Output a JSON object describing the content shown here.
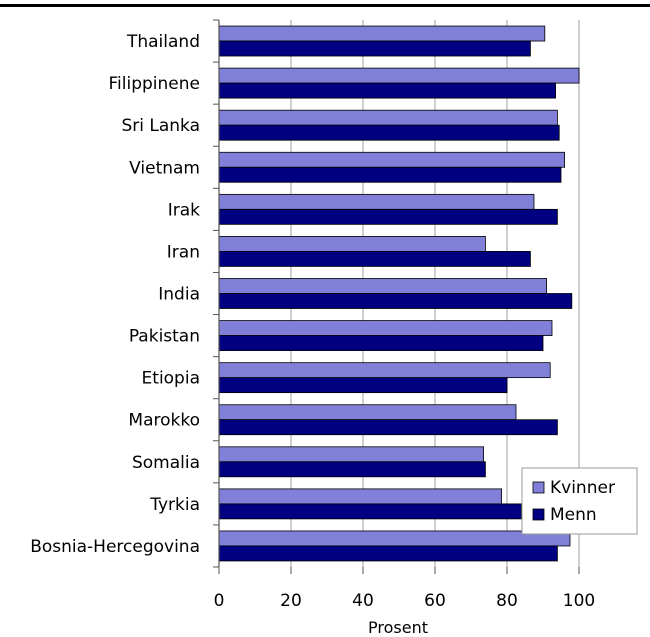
{
  "chart_data": {
    "type": "bar",
    "orientation": "horizontal",
    "categories": [
      "Thailand",
      "Filippinene",
      "Sri Lanka",
      "Vietnam",
      "Irak",
      "Iran",
      "India",
      "Pakistan",
      "Etiopia",
      "Marokko",
      "Somalia",
      "Tyrkia",
      "Bosnia-Hercegovina"
    ],
    "series": [
      {
        "name": "Kvinner",
        "color": "#8080d8",
        "values": [
          90.5,
          100,
          94,
          96,
          87.5,
          74,
          91,
          92.5,
          92,
          82.5,
          73.5,
          78.5,
          97.5
        ]
      },
      {
        "name": "Menn",
        "color": "#000080",
        "values": [
          86.5,
          93.5,
          94.5,
          95,
          94,
          86.5,
          98,
          90,
          80,
          94,
          74,
          84,
          94
        ]
      }
    ],
    "xlabel": "Prosent",
    "xlim": [
      0,
      100
    ],
    "xticks": [
      0,
      20,
      40,
      60,
      80,
      100
    ],
    "grid": "vertical",
    "legend": "bottom-right"
  }
}
